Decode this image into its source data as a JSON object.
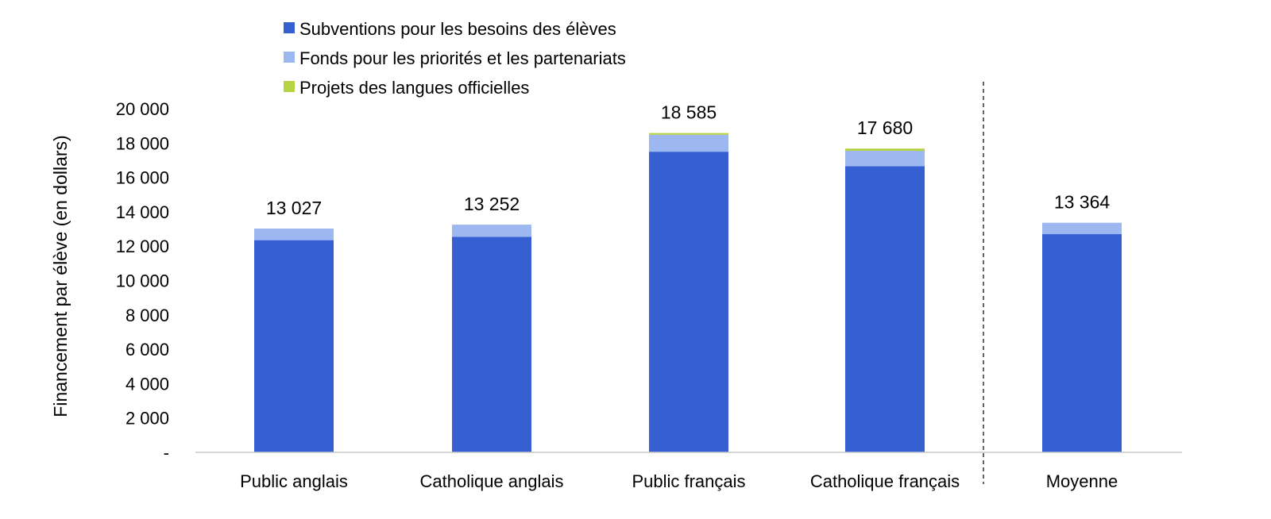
{
  "chart_data": {
    "type": "bar",
    "stacked": true,
    "title": "",
    "xlabel": "",
    "ylabel": "Financement par élève (en dollars)",
    "ylim": [
      0,
      20000
    ],
    "yticks": [
      0,
      2000,
      4000,
      6000,
      8000,
      10000,
      12000,
      14000,
      16000,
      18000,
      20000
    ],
    "ytick_labels": [
      "-",
      "2 000",
      "4 000",
      "6 000",
      "8 000",
      "10 000",
      "12 000",
      "14 000",
      "16 000",
      "18 000",
      "20 000"
    ],
    "categories": [
      "Public anglais",
      "Catholique anglais",
      "Public français",
      "Catholique français",
      "Moyenne"
    ],
    "series": [
      {
        "name": "Subventions pour les besoins des élèves",
        "color": "#3660d1",
        "values": [
          12350,
          12550,
          17500,
          16650,
          12700
        ]
      },
      {
        "name": "Fonds pour les priorités et les partenariats",
        "color": "#9db7f0",
        "values": [
          677,
          702,
          985,
          900,
          664
        ]
      },
      {
        "name": "Projets des langues officielles",
        "color": "#b5d444",
        "values": [
          0,
          0,
          100,
          130,
          0
        ]
      }
    ],
    "totals": [
      13027,
      13252,
      18585,
      17680,
      13364
    ],
    "total_labels": [
      "13 027",
      "13 252",
      "18 585",
      "17 680",
      "13 364"
    ],
    "separator_before_category": "Moyenne",
    "grid": false,
    "legend_position": "top-left"
  }
}
